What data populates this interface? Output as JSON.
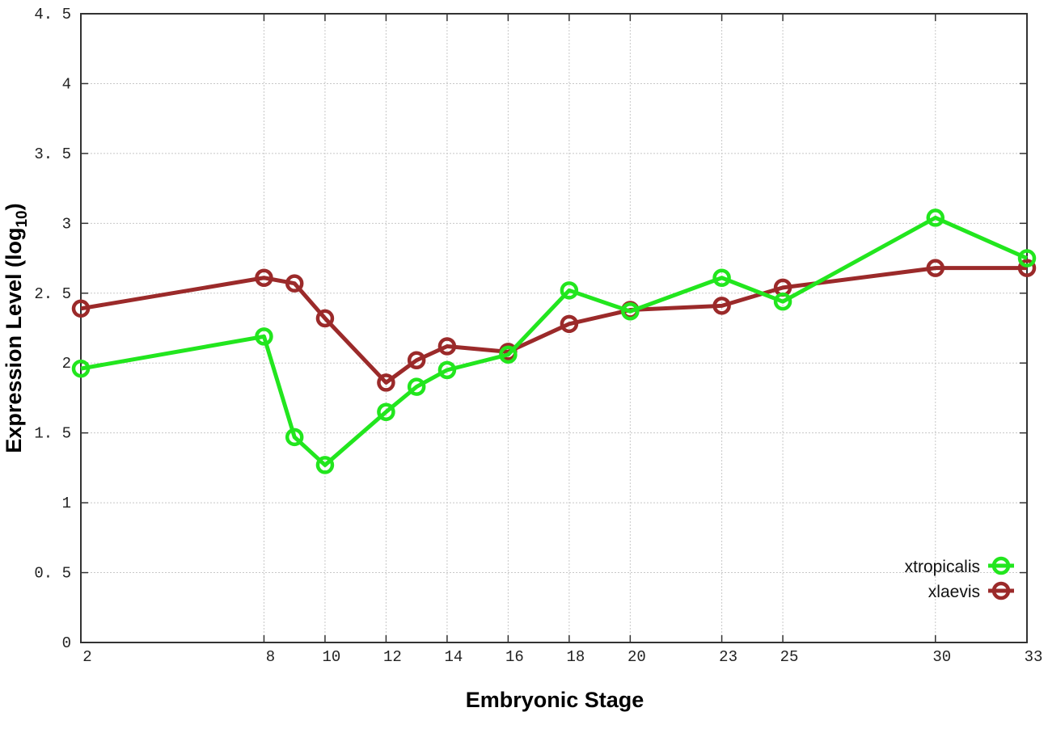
{
  "chart_data": {
    "type": "line",
    "title": "",
    "xlabel": "Embryonic Stage",
    "ylabel": "Expression Level (log",
    "ylabel_sub": "10",
    "ylabel_close": ")",
    "x": [
      2,
      8,
      9,
      10,
      12,
      13,
      14,
      16,
      18,
      20,
      23,
      25,
      30,
      33
    ],
    "xticks": [
      2,
      8,
      10,
      12,
      14,
      16,
      18,
      20,
      23,
      25,
      30,
      33
    ],
    "xlim": [
      2,
      33
    ],
    "ylim": [
      0,
      4.5
    ],
    "yticks": [
      0,
      0.5,
      1,
      1.5,
      2,
      2.5,
      3,
      3.5,
      4,
      4.5
    ],
    "ytick_labels": [
      "0",
      "0. 5",
      "1",
      "1. 5",
      "2",
      "2. 5",
      "3",
      "3. 5",
      "4",
      "4. 5"
    ],
    "grid": true,
    "legend_placement": "bottom-right",
    "series": [
      {
        "name": "xtropicalis",
        "color": "#22e61e",
        "values": [
          1.96,
          2.19,
          1.47,
          1.27,
          1.65,
          1.83,
          1.95,
          2.06,
          2.52,
          2.37,
          2.61,
          2.44,
          3.04,
          2.75
        ]
      },
      {
        "name": "xlaevis",
        "color": "#9b2a2a",
        "values": [
          2.39,
          2.61,
          2.57,
          2.32,
          1.86,
          2.02,
          2.12,
          2.08,
          2.28,
          2.38,
          2.41,
          2.54,
          2.68,
          2.68
        ]
      }
    ]
  }
}
